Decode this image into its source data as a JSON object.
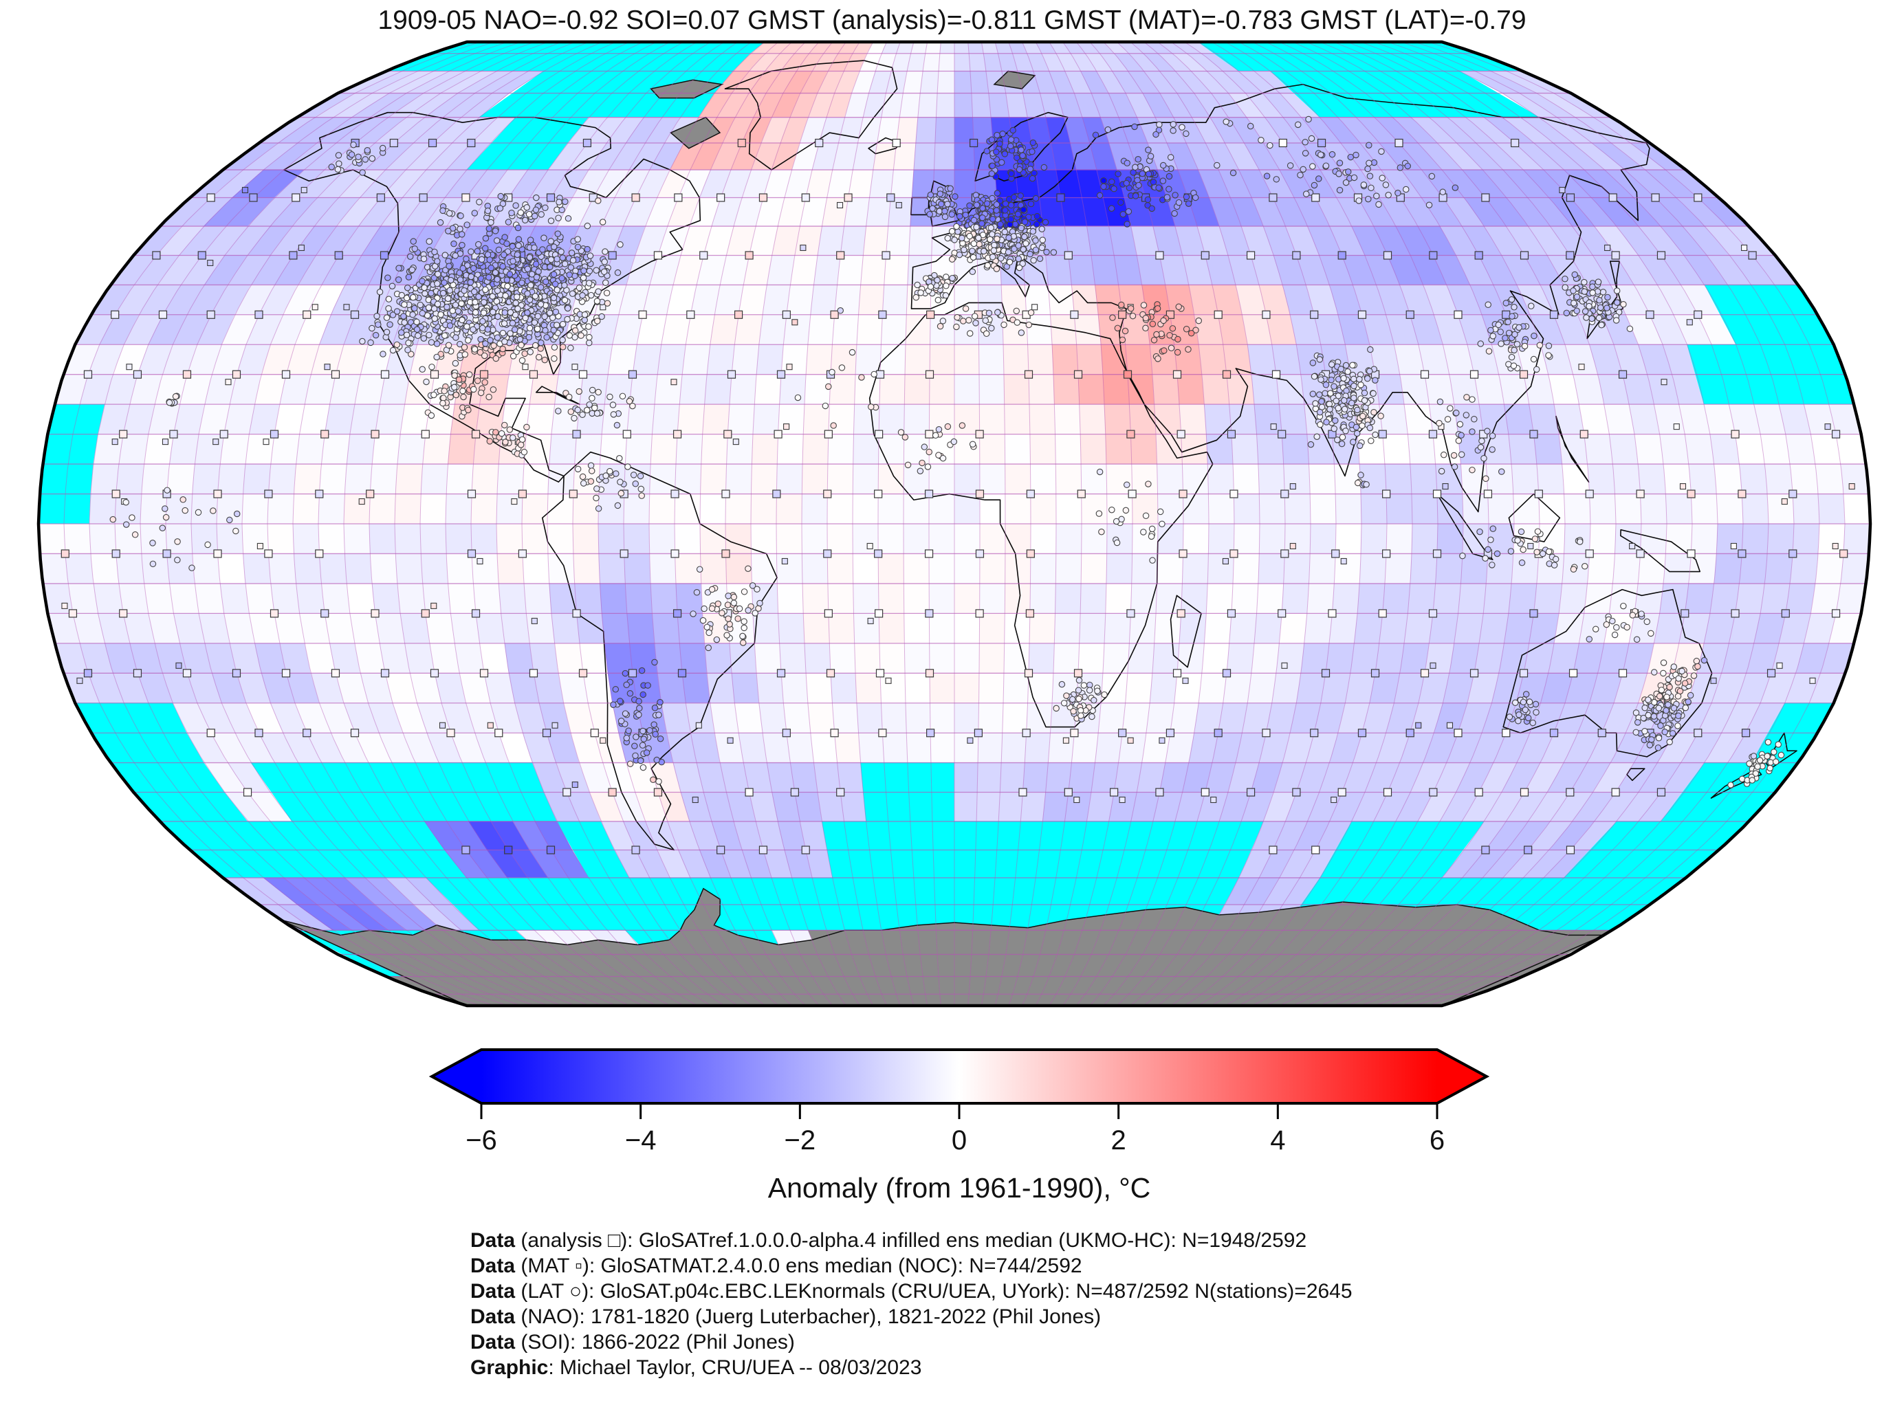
{
  "title": "1909-05 NAO=-0.92 SOI=0.07 GMST (analysis)=-0.811 GMST (MAT)=-0.783 GMST (LAT)=-0.79",
  "chart_data": {
    "type": "heatmap",
    "subtype": "global-anomaly-map-robinson",
    "date": "1909-05",
    "indices": {
      "NAO": -0.92,
      "SOI": 0.07,
      "GMST_analysis": -0.811,
      "GMST_MAT": -0.783,
      "GMST_LAT": -0.79
    },
    "counts": {
      "analysis_cells": "N=1948/2592",
      "mat_cells": "N=744/2592",
      "lat_cells": "N=487/2592",
      "stations": 2645
    },
    "colorbar": {
      "label": "Anomaly (from 1961-1990), °C",
      "min": -6,
      "max": 6,
      "ticks": [
        -6,
        -4,
        -2,
        0,
        2,
        4,
        6
      ],
      "tick_labels": [
        "−6",
        "−4",
        "−2",
        "0",
        "2",
        "4",
        "6"
      ],
      "neg_color": "#0000ff",
      "mid_color": "#ffffff",
      "pos_color": "#ff0000",
      "no_data_color": "#00ffff",
      "land_no_data_color": "#8a8a8a"
    },
    "grid": {
      "description": "10-degree anomaly field (degC), rows from 90N-80N down to 80S-90S, cols from 180W to 180E; X=no data (cyan), Z=no data land/ice (gray)",
      "cell_deg": 10,
      "value_key": {
        "a": -5.0,
        "b": -4.0,
        "c": -3.0,
        "d": -2.5,
        "e": -2.0,
        "f": -1.6,
        "g": -1.3,
        "h": -1.0,
        "i": -0.8,
        "j": -0.6,
        "k": -0.4,
        "l": -0.25,
        "m": 0.0,
        "n": 0.3,
        "o": 0.6,
        "p": 1.0,
        "q": 1.5,
        "r": 2.0,
        "s": 2.5
      },
      "special": {
        "X": "no-data-ocean",
        "Z": "no-data-land"
      },
      "rows": [
        "XXXXXXXXXXXpppplllhhhhhhhhhXXXXXXXXX",
        "hhhhhXXXXXXqqqplllggggggghhhXXXXXXhh",
        "ggghhhXXhhhqqpllmgcbbcefgggfffgggggg",
        "gdghhhhhhllmllmmlecaaabcefffgfeeeeff",
        "hhgggffeefhlmmmlmllhgfghhgfeefghhggh",
        "hhhllhhhihlmmmmlmmlmnqrpohghhghhllXX",
        "llllmmlnpnlllllmmnmnqrqpihillllhhXXX",
        "Xllllllmpnllmmmmlmmmnpoihillhhllllll",
        "Xllllmmmmmmlmmmmmllmmmllllhhllllllll",
        "lllllllllmmhmnmmmmmmmllllllhhllllhhl",
        "llllllllllhefmlmmmmmllllllhhhhllhhhl",
        "hhhhhllllhmcehllmmmllllllhhhhgghnhhh",
        "XXlllllllhmehllmlllllllhhhhhgghhhhhX",
        "XXlXXXXXXhmnhhggXXhhggggghhhhhhhhhXX",
        "XXXXXXcbcXhhgggXXXXXXXXXXggXXXgggXXX",
        "gccegXXXXXXXXXXXXXXXXXXXXggXXXXXXXXX",
        "XXXXXXlllXXXXlZZZZZZZZZZZZZZZZZZZZZZ",
        "ZZZZZZZZZZZZZZZZZZZZZZZZZZZZZZZZZZZZ"
      ]
    }
  },
  "markers": {
    "legend": [
      {
        "symbol": "□",
        "meaning": "analysis grid cell"
      },
      {
        "symbol": "▫",
        "meaning": "MAT grid cell"
      },
      {
        "symbol": "○",
        "meaning": "LAT station"
      }
    ],
    "styles": {
      "analysis_size": 11,
      "mat_size": 8,
      "station_radius": 4.2,
      "outline": "#3a3a3a"
    },
    "station_clusters": [
      {
        "name": "usa",
        "lon": -97,
        "lat": 38,
        "dlon": 26,
        "dlat": 11,
        "n": 1150
      },
      {
        "name": "canada-south",
        "lon": -100,
        "lat": 52,
        "dlon": 22,
        "dlat": 4,
        "n": 70
      },
      {
        "name": "alaska",
        "lon": -150,
        "lat": 62,
        "dlon": 8,
        "dlat": 4,
        "n": 20
      },
      {
        "name": "mexico",
        "lon": -100,
        "lat": 22,
        "dlon": 9,
        "dlat": 6,
        "n": 55
      },
      {
        "name": "central-america",
        "lon": -88,
        "lat": 14,
        "dlon": 6,
        "dlat": 3,
        "n": 25
      },
      {
        "name": "caribbean",
        "lon": -72,
        "lat": 19,
        "dlon": 10,
        "dlat": 4,
        "n": 30
      },
      {
        "name": "south-america-north",
        "lon": -68,
        "lat": 7,
        "dlon": 8,
        "dlat": 5,
        "n": 30
      },
      {
        "name": "brazil",
        "lon": -45,
        "lat": -15,
        "dlon": 8,
        "dlat": 9,
        "n": 50
      },
      {
        "name": "chile-argentina",
        "lon": -65,
        "lat": -33,
        "dlon": 6,
        "dlat": 11,
        "n": 60
      },
      {
        "name": "europe",
        "lon": 10,
        "lat": 49,
        "dlon": 12,
        "dlat": 7,
        "n": 430
      },
      {
        "name": "iberia",
        "lon": -4,
        "lat": 40,
        "dlon": 5,
        "dlat": 3,
        "n": 45
      },
      {
        "name": "british-isles",
        "lon": -3,
        "lat": 54,
        "dlon": 4,
        "dlat": 3,
        "n": 45
      },
      {
        "name": "scandinavia",
        "lon": 15,
        "lat": 63,
        "dlon": 8,
        "dlat": 5,
        "n": 65
      },
      {
        "name": "russia-west",
        "lon": 45,
        "lat": 57,
        "dlon": 13,
        "dlat": 7,
        "n": 75
      },
      {
        "name": "siberia",
        "lon": 95,
        "lat": 60,
        "dlon": 35,
        "dlat": 7,
        "n": 60
      },
      {
        "name": "middle-east",
        "lon": 42,
        "lat": 33,
        "dlon": 10,
        "dlat": 6,
        "n": 45
      },
      {
        "name": "north-africa",
        "lon": 5,
        "lat": 34,
        "dlon": 14,
        "dlat": 3,
        "n": 30
      },
      {
        "name": "west-africa",
        "lon": -5,
        "lat": 12,
        "dlon": 12,
        "dlat": 6,
        "n": 20
      },
      {
        "name": "east-africa",
        "lon": 35,
        "lat": 0,
        "dlon": 8,
        "dlat": 10,
        "n": 20
      },
      {
        "name": "south-africa",
        "lon": 25,
        "lat": -29,
        "dlon": 6,
        "dlat": 4,
        "n": 40
      },
      {
        "name": "india",
        "lon": 78,
        "lat": 21,
        "dlon": 8,
        "dlat": 9,
        "n": 180
      },
      {
        "name": "sri-lanka",
        "lon": 80,
        "lat": 7,
        "dlon": 1.5,
        "dlat": 2,
        "n": 6
      },
      {
        "name": "se-asia",
        "lon": 102,
        "lat": 14,
        "dlon": 8,
        "dlat": 8,
        "n": 30
      },
      {
        "name": "china-east",
        "lon": 114,
        "lat": 32,
        "dlon": 8,
        "dlat": 8,
        "n": 55
      },
      {
        "name": "japan-korea",
        "lon": 134,
        "lat": 37,
        "dlon": 7,
        "dlat": 5,
        "n": 85
      },
      {
        "name": "indonesia",
        "lon": 112,
        "lat": -4,
        "dlon": 15,
        "dlat": 4,
        "n": 35
      },
      {
        "name": "australia-east",
        "lon": 146,
        "lat": -30,
        "dlon": 6,
        "dlat": 8,
        "n": 140
      },
      {
        "name": "australia-west",
        "lon": 117,
        "lat": -31,
        "dlon": 3,
        "dlat": 3,
        "n": 25
      },
      {
        "name": "australia-north",
        "lon": 133,
        "lat": -17,
        "dlon": 8,
        "dlat": 4,
        "n": 18
      },
      {
        "name": "new-zealand",
        "lon": 172,
        "lat": -40,
        "dlon": 4,
        "dlat": 4,
        "n": 38
      },
      {
        "name": "pacific-islands",
        "lon": -155,
        "lat": 0,
        "dlon": 20,
        "dlat": 12,
        "n": 22
      },
      {
        "name": "hawaii",
        "lon": -157,
        "lat": 21,
        "dlon": 3,
        "dlat": 2,
        "n": 8
      },
      {
        "name": "atlantic-islands",
        "lon": -25,
        "lat": 25,
        "dlon": 12,
        "dlat": 12,
        "n": 12
      },
      {
        "name": "arctic-russia-coast",
        "lon": 70,
        "lat": 68,
        "dlon": 40,
        "dlat": 2,
        "n": 15
      }
    ]
  },
  "attribution": [
    {
      "prefix": "Data",
      "text": " (analysis □): GloSATref.1.0.0.0-alpha.4 infilled ens median (UKMO-HC): N=1948/2592"
    },
    {
      "prefix": "Data",
      "text": " (MAT ▫): GloSATMAT.2.4.0.0 ens median (NOC): N=744/2592"
    },
    {
      "prefix": "Data",
      "text": " (LAT ○): GloSAT.p04c.EBC.LEKnormals (CRU/UEA, UYork): N=487/2592 N(stations)=2645"
    },
    {
      "prefix": "Data",
      "text": " (NAO): 1781-1820 (Juerg Luterbacher), 1821-2022 (Phil Jones)"
    },
    {
      "prefix": "Data",
      "text": " (SOI): 1866-2022 (Phil Jones)"
    },
    {
      "prefix": "Graphic",
      "text": ": Michael Taylor, CRU/UEA -- 08/03/2023"
    }
  ]
}
